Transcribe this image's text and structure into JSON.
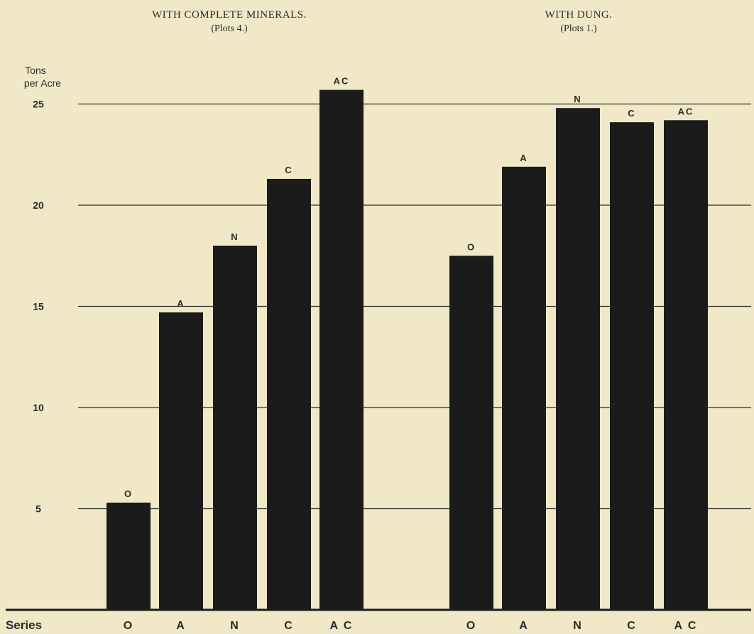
{
  "chart_data": {
    "type": "bar",
    "ylabel_line1": "Tons",
    "ylabel_line2": "per Acre",
    "ylim": [
      0,
      26.5
    ],
    "yticks": [
      "5",
      "10",
      "15",
      "20",
      "25"
    ],
    "xaxis_label": "Series",
    "grid": true,
    "panels": [
      {
        "title": "WITH COMPLETE MINERALS.",
        "subtitle": "(Plots 4.)",
        "categories": [
          "O",
          "A",
          "N",
          "C",
          "A C"
        ],
        "bar_labels": [
          "O",
          "A",
          "N",
          "C",
          "AC"
        ],
        "values": [
          5.3,
          14.7,
          18.0,
          21.3,
          25.7
        ]
      },
      {
        "title": "WITH DUNG.",
        "subtitle": "(Plots 1.)",
        "categories": [
          "O",
          "A",
          "N",
          "C",
          "A C"
        ],
        "bar_labels": [
          "O",
          "A",
          "N",
          "C",
          "AC"
        ],
        "values": [
          17.5,
          21.9,
          24.8,
          24.1,
          24.2
        ]
      }
    ],
    "colors": {
      "bar": "#1b1b1b",
      "grid": "#2a2a2a",
      "background": "#f1e8c7"
    }
  }
}
